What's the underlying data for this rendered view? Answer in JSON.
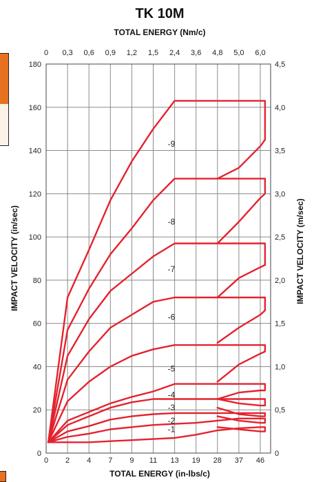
{
  "colors": {
    "curve": "#e4222e",
    "grid": "#8a8a8a",
    "sidebar_orange": "#e8711f"
  },
  "chart_data": {
    "type": "line",
    "title": "TK 10M",
    "top_axis_label": "TOTAL ENERGY (Nm/c)",
    "xlabel": "TOTAL ENERGY (in-lbs/c)",
    "ylabel": "IMPACT VELOCITY (in/sec)",
    "ylabel_right": "IMPACT VELOCITY (m/sec)",
    "x_ticks_bottom": [
      "0",
      "2",
      "4",
      "7",
      "9",
      "11",
      "13",
      "19",
      "28",
      "37",
      "46"
    ],
    "x_ticks_top": [
      "0",
      "0,3",
      "0,6",
      "0,9",
      "1,2",
      "1,5",
      "2,4",
      "3,6",
      "4,8",
      "5,0",
      "6,0"
    ],
    "y_ticks_left": [
      "0",
      "20",
      "40",
      "60",
      "80",
      "100",
      "120",
      "140",
      "160",
      "180"
    ],
    "y_ticks_right": [
      "0",
      "0,5",
      "1,0",
      "1,5",
      "2,0",
      "2,5",
      "3,0",
      "3,5",
      "4,0",
      "4,5"
    ],
    "ylim": [
      0,
      180
    ],
    "x_scale": "nonlinear (tick index)",
    "grid": true,
    "series": [
      {
        "name": "-1",
        "label_at": [
          12.7,
          11
        ],
        "points": [
          [
            0.2,
            5
          ],
          [
            2,
            5
          ],
          [
            4,
            5
          ],
          [
            7,
            5.5
          ],
          [
            9,
            6
          ],
          [
            11,
            6.5
          ],
          [
            13,
            7
          ],
          [
            19,
            8.5
          ],
          [
            28,
            10.5
          ],
          [
            37,
            11.5
          ],
          [
            46,
            12
          ],
          [
            48,
            12
          ],
          [
            48,
            10
          ],
          [
            46,
            10
          ],
          [
            37,
            11
          ],
          [
            28,
            12
          ]
        ]
      },
      {
        "name": "-2",
        "label_at": [
          12.7,
          15
        ],
        "points": [
          [
            0.2,
            5
          ],
          [
            2,
            7.5
          ],
          [
            4,
            9
          ],
          [
            7,
            11
          ],
          [
            9,
            12
          ],
          [
            11,
            13
          ],
          [
            13,
            13.5
          ],
          [
            19,
            14
          ],
          [
            28,
            15
          ],
          [
            37,
            16
          ],
          [
            46,
            16
          ],
          [
            48,
            16
          ],
          [
            48,
            14
          ],
          [
            46,
            14
          ],
          [
            37,
            15
          ],
          [
            28,
            17
          ]
        ]
      },
      {
        "name": "-3",
        "label_at": [
          12.7,
          21
        ],
        "points": [
          [
            0.2,
            5
          ],
          [
            2,
            10
          ],
          [
            4,
            12.5
          ],
          [
            7,
            15.5
          ],
          [
            9,
            17
          ],
          [
            11,
            18
          ],
          [
            13,
            18.5
          ],
          [
            19,
            18.5
          ],
          [
            46,
            18.5
          ],
          [
            48,
            18.5
          ],
          [
            48,
            17
          ],
          [
            46,
            17
          ],
          [
            37,
            18
          ],
          [
            28,
            21
          ]
        ]
      },
      {
        "name": "-4",
        "label_at": [
          12.7,
          27
        ],
        "points": [
          [
            0.2,
            5
          ],
          [
            2,
            13
          ],
          [
            4,
            17
          ],
          [
            7,
            21
          ],
          [
            9,
            23.5
          ],
          [
            11,
            25
          ],
          [
            13,
            25
          ],
          [
            46,
            25
          ],
          [
            48,
            25
          ],
          [
            48,
            22
          ],
          [
            46,
            22
          ],
          [
            37,
            23
          ],
          [
            28,
            25
          ]
        ]
      },
      {
        "name": "",
        "label_at": null,
        "points": [
          [
            0.2,
            5
          ],
          [
            2,
            15
          ],
          [
            4,
            19
          ],
          [
            7,
            23
          ],
          [
            9,
            26
          ],
          [
            11,
            28.5
          ],
          [
            13,
            32
          ],
          [
            46,
            32
          ],
          [
            48,
            32
          ],
          [
            48,
            29
          ],
          [
            46,
            29
          ],
          [
            37,
            28
          ],
          [
            28,
            25
          ]
        ]
      },
      {
        "name": "-5",
        "label_at": [
          12.7,
          39
        ],
        "points": [
          [
            0.2,
            5
          ],
          [
            2,
            24
          ],
          [
            4,
            33
          ],
          [
            7,
            40
          ],
          [
            9,
            45
          ],
          [
            11,
            48
          ],
          [
            13,
            50
          ],
          [
            46,
            50
          ],
          [
            48,
            50
          ],
          [
            48,
            47
          ],
          [
            46,
            46
          ],
          [
            37,
            41
          ],
          [
            28,
            33
          ]
        ]
      },
      {
        "name": "-6",
        "label_at": [
          12.7,
          63
        ],
        "points": [
          [
            0.2,
            5
          ],
          [
            2,
            34
          ],
          [
            4,
            47
          ],
          [
            7,
            58
          ],
          [
            9,
            64
          ],
          [
            11,
            70
          ],
          [
            13,
            72
          ],
          [
            46,
            72
          ],
          [
            48,
            72
          ],
          [
            48,
            66
          ],
          [
            46,
            64
          ],
          [
            37,
            58
          ],
          [
            28,
            51
          ]
        ]
      },
      {
        "name": "-7",
        "label_at": [
          12.7,
          85
        ],
        "points": [
          [
            0.2,
            5
          ],
          [
            2,
            45
          ],
          [
            4,
            62
          ],
          [
            7,
            75
          ],
          [
            9,
            83
          ],
          [
            11,
            91
          ],
          [
            13,
            97
          ],
          [
            46,
            97
          ],
          [
            48,
            97
          ],
          [
            48,
            87
          ],
          [
            46,
            86
          ],
          [
            37,
            81
          ],
          [
            28,
            72
          ]
        ]
      },
      {
        "name": "-8",
        "label_at": [
          12.7,
          107
        ],
        "points": [
          [
            0.2,
            5
          ],
          [
            2,
            57
          ],
          [
            4,
            76
          ],
          [
            7,
            92
          ],
          [
            9,
            104
          ],
          [
            11,
            117
          ],
          [
            13,
            127
          ],
          [
            46,
            127
          ],
          [
            48,
            127
          ],
          [
            48,
            120
          ],
          [
            46,
            118
          ],
          [
            37,
            107
          ],
          [
            28,
            97
          ]
        ]
      },
      {
        "name": "-9",
        "label_at": [
          12.7,
          143
        ],
        "points": [
          [
            0.2,
            5
          ],
          [
            2,
            72
          ],
          [
            4,
            94
          ],
          [
            7,
            117
          ],
          [
            9,
            135
          ],
          [
            11,
            150
          ],
          [
            13,
            163
          ],
          [
            46,
            163
          ],
          [
            48,
            163
          ],
          [
            48,
            145
          ],
          [
            46,
            142
          ],
          [
            37,
            132
          ],
          [
            28,
            127
          ]
        ]
      }
    ]
  }
}
